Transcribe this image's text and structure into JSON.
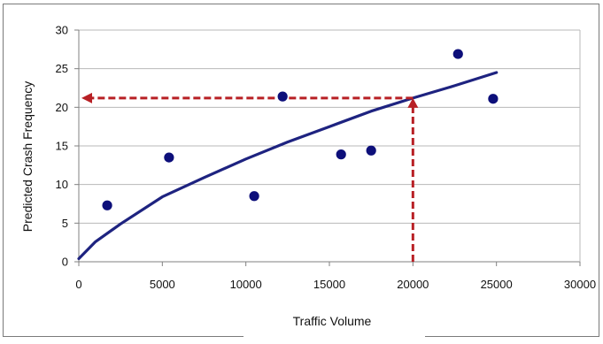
{
  "chart_data": {
    "type": "scatter",
    "title": "",
    "xlabel": "Traffic Volume",
    "ylabel": "Predicted Crash Frequency",
    "xlim": [
      0,
      30000
    ],
    "ylim": [
      0,
      30
    ],
    "x_ticks": [
      0,
      5000,
      10000,
      15000,
      20000,
      25000,
      30000
    ],
    "y_ticks": [
      0,
      5,
      10,
      15,
      20,
      25,
      30
    ],
    "grid": "horizontal",
    "legend": "none",
    "series": [
      {
        "kind": "scatter",
        "points": [
          {
            "x": 1700,
            "y": 7.3
          },
          {
            "x": 5400,
            "y": 13.5
          },
          {
            "x": 10500,
            "y": 8.5
          },
          {
            "x": 12200,
            "y": 21.4
          },
          {
            "x": 15700,
            "y": 13.9
          },
          {
            "x": 17500,
            "y": 14.4
          },
          {
            "x": 22700,
            "y": 26.9
          },
          {
            "x": 24800,
            "y": 21.1
          }
        ]
      },
      {
        "kind": "curve",
        "points": [
          {
            "x": 0,
            "y": 0.4
          },
          {
            "x": 1000,
            "y": 2.6
          },
          {
            "x": 2500,
            "y": 4.9
          },
          {
            "x": 5000,
            "y": 8.4
          },
          {
            "x": 7500,
            "y": 10.9
          },
          {
            "x": 10000,
            "y": 13.3
          },
          {
            "x": 12500,
            "y": 15.5
          },
          {
            "x": 15000,
            "y": 17.5
          },
          {
            "x": 17500,
            "y": 19.5
          },
          {
            "x": 20000,
            "y": 21.2
          },
          {
            "x": 22500,
            "y": 22.8
          },
          {
            "x": 25000,
            "y": 24.5
          }
        ]
      }
    ],
    "annotations": [
      {
        "type": "vertical-arrow",
        "x": 20000,
        "y_from": 0,
        "y_to": 21.2
      },
      {
        "type": "horizontal-arrow",
        "y": 21.2,
        "x_from": 20000,
        "x_to": 0
      }
    ],
    "colors": {
      "marker": "#0d0f7a",
      "curve": "#1e2380",
      "arrow": "#b82025",
      "grid": "#b8b8b8",
      "axis": "#808080",
      "frame": "#7a7a7a"
    }
  }
}
